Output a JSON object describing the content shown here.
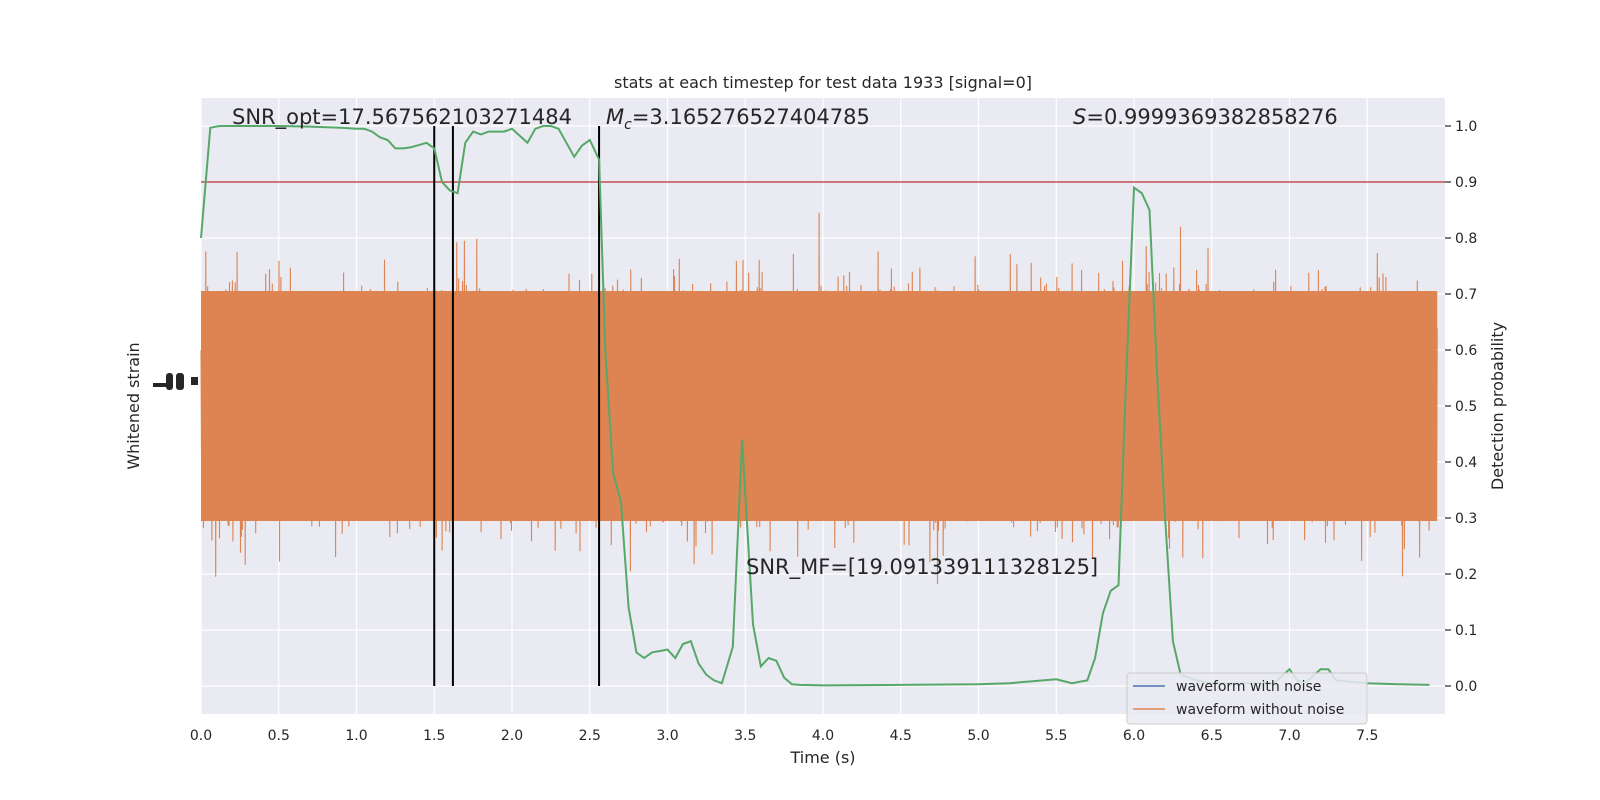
{
  "chart_data": {
    "type": "line",
    "title": "stats at each timestep for test data 1933 [signal=0]",
    "xlabel": "Time (s)",
    "ylabel_left": "Whitened strain",
    "ylabel_right": "Detection probability",
    "xlim": [
      0.0,
      8.0
    ],
    "ylim_right": [
      -0.05,
      1.05
    ],
    "x_ticks": [
      "0.0",
      "0.5",
      "1.0",
      "1.5",
      "2.0",
      "2.5",
      "3.0",
      "3.5",
      "4.0",
      "4.5",
      "5.0",
      "5.5",
      "6.0",
      "6.5",
      "7.0",
      "7.5"
    ],
    "x_tick_values": [
      0.0,
      0.5,
      1.0,
      1.5,
      2.0,
      2.5,
      3.0,
      3.5,
      4.0,
      4.5,
      5.0,
      5.5,
      6.0,
      6.5,
      7.0,
      7.5
    ],
    "y_ticks_right": [
      "0.0",
      "0.1",
      "0.2",
      "0.3",
      "0.4",
      "0.5",
      "0.6",
      "0.7",
      "0.8",
      "0.9",
      "1.0"
    ],
    "y_tick_values_right": [
      0.0,
      0.1,
      0.2,
      0.3,
      0.4,
      0.5,
      0.6,
      0.7,
      0.8,
      0.9,
      1.0
    ],
    "threshold": 0.9,
    "vertical_lines": [
      1.5,
      1.62,
      2.56
    ],
    "annotations": {
      "snr_opt": "SNR_opt=17.567562103271484",
      "mc_symbol": "M",
      "mc_sub": "c",
      "mc_value": "=3.165276527404785",
      "s_symbol": "S",
      "s_value": "=0.9999369382858276",
      "snr_mf": "SNR_MF=[19.091339111328125]"
    },
    "series": [
      {
        "name": "waveform with noise",
        "color": "#4c72b0"
      },
      {
        "name": "waveform without noise",
        "color": "#dd8452"
      }
    ],
    "probability_series": {
      "color": "#55a868",
      "x": [
        0.0,
        0.03,
        0.06,
        0.12,
        0.2,
        0.3,
        0.5,
        0.7,
        0.9,
        1.0,
        1.05,
        1.1,
        1.15,
        1.2,
        1.25,
        1.3,
        1.35,
        1.45,
        1.5,
        1.55,
        1.6,
        1.65,
        1.7,
        1.75,
        1.8,
        1.85,
        1.9,
        1.95,
        2.0,
        2.1,
        2.15,
        2.2,
        2.25,
        2.3,
        2.35,
        2.4,
        2.45,
        2.5,
        2.56,
        2.6,
        2.65,
        2.7,
        2.75,
        2.8,
        2.85,
        2.9,
        3.0,
        3.05,
        3.1,
        3.15,
        3.2,
        3.25,
        3.3,
        3.35,
        3.42,
        3.48,
        3.55,
        3.6,
        3.65,
        3.7,
        3.75,
        3.8,
        3.85,
        4.0,
        4.5,
        5.0,
        5.2,
        5.5,
        5.6,
        5.7,
        5.75,
        5.8,
        5.85,
        5.9,
        5.95,
        6.0,
        6.05,
        6.1,
        6.15,
        6.2,
        6.25,
        6.3,
        6.4,
        6.5,
        6.7,
        6.9,
        7.0,
        7.05,
        7.1,
        7.2,
        7.25,
        7.3,
        7.5,
        7.7,
        7.9
      ],
      "y": [
        0.8,
        0.9,
        0.997,
        1.0,
        1.0,
        1.0,
        1.0,
        0.999,
        0.997,
        0.995,
        0.995,
        0.99,
        0.98,
        0.975,
        0.96,
        0.96,
        0.962,
        0.97,
        0.96,
        0.9,
        0.885,
        0.88,
        0.97,
        0.99,
        0.985,
        0.99,
        0.99,
        0.99,
        0.995,
        0.97,
        0.995,
        1.0,
        1.0,
        0.995,
        0.97,
        0.945,
        0.965,
        0.975,
        0.94,
        0.6,
        0.38,
        0.33,
        0.14,
        0.06,
        0.05,
        0.06,
        0.065,
        0.05,
        0.075,
        0.08,
        0.04,
        0.02,
        0.01,
        0.005,
        0.07,
        0.44,
        0.11,
        0.035,
        0.05,
        0.045,
        0.015,
        0.003,
        0.002,
        0.001,
        0.002,
        0.003,
        0.005,
        0.012,
        0.005,
        0.01,
        0.05,
        0.13,
        0.17,
        0.18,
        0.55,
        0.89,
        0.88,
        0.85,
        0.55,
        0.3,
        0.08,
        0.02,
        0.01,
        0.005,
        0.005,
        0.005,
        0.03,
        0.01,
        0.005,
        0.03,
        0.03,
        0.01,
        0.005,
        0.003,
        0.002
      ]
    },
    "grid": true,
    "legend_position": "lower right"
  }
}
